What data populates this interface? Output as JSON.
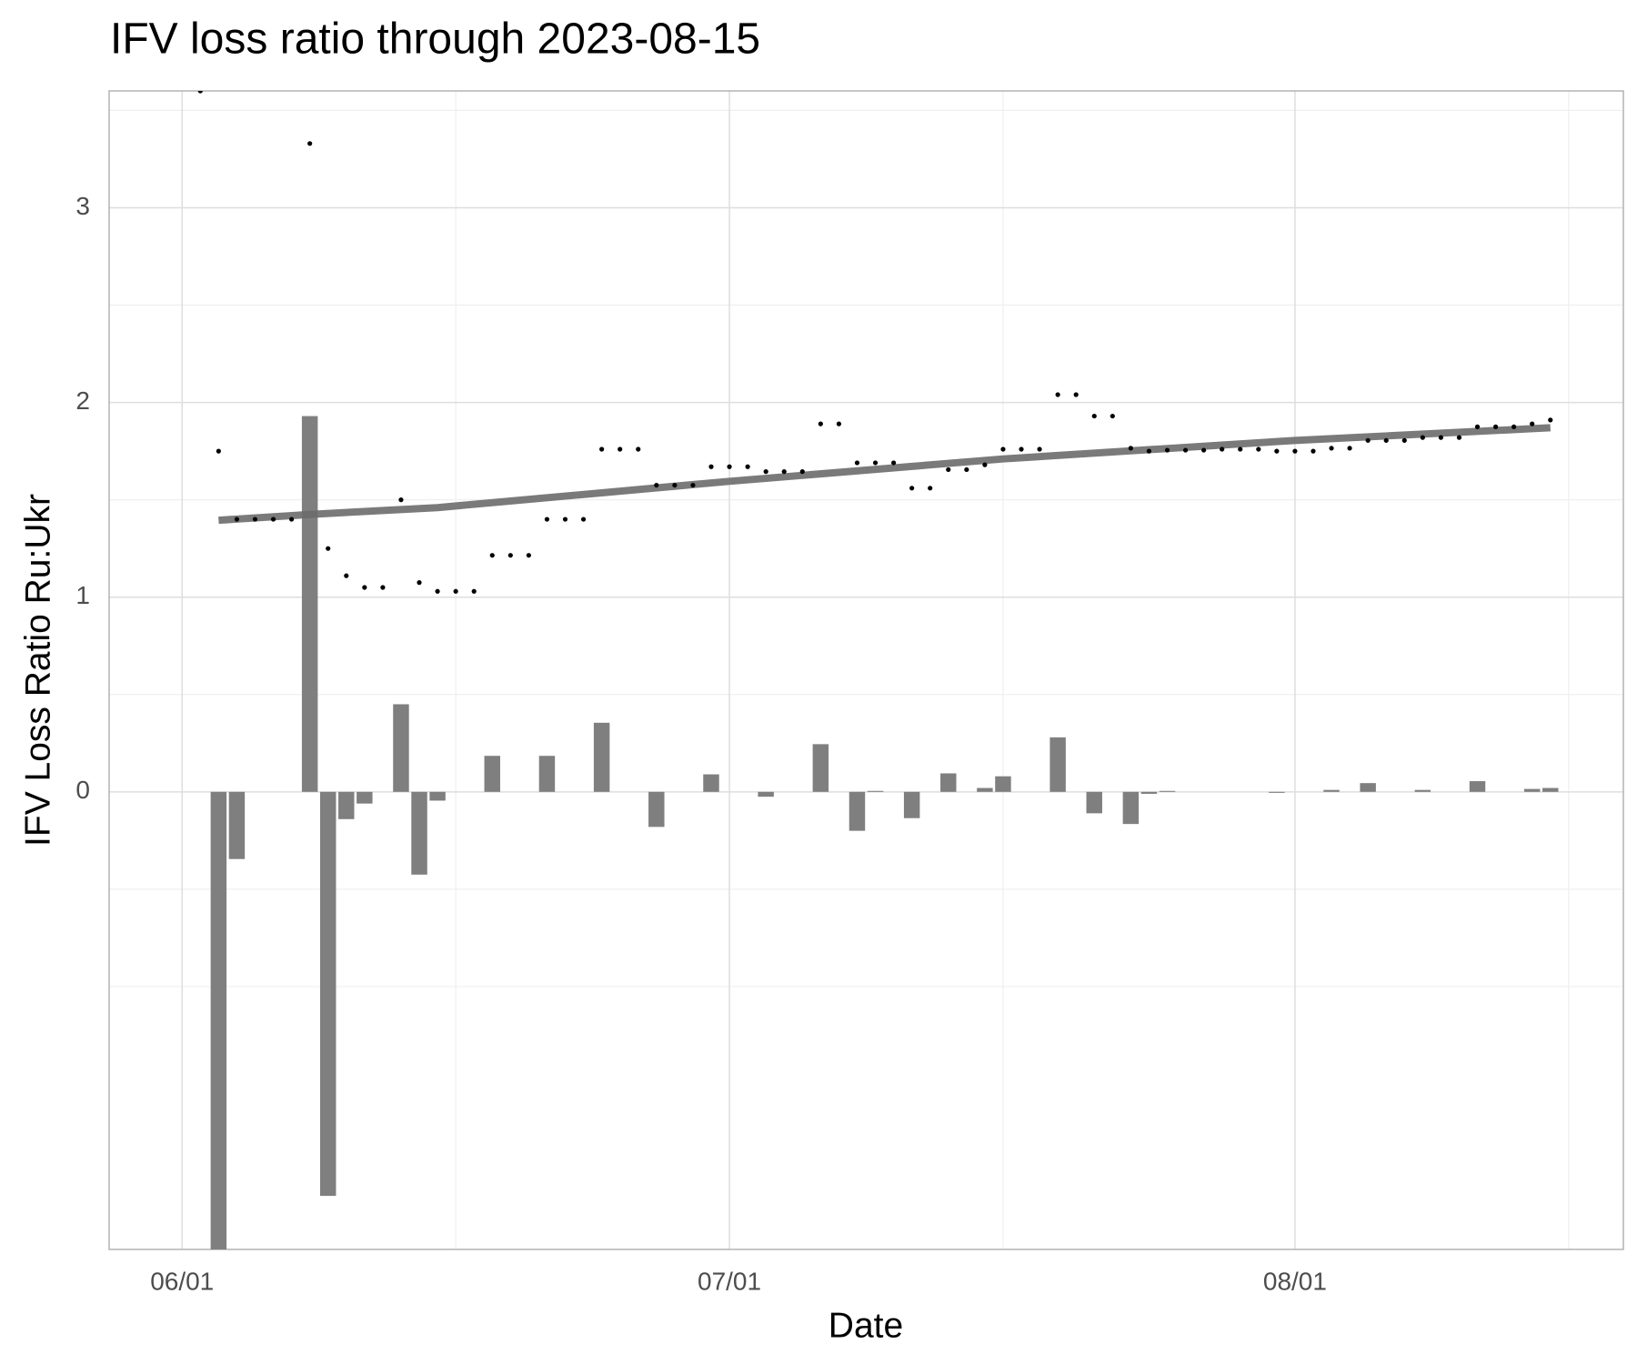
{
  "chart_data": {
    "type": "combo",
    "title": "IFV loss ratio through 2023-08-15",
    "x_label": "Date",
    "y_label": "IFV Loss Ratio Ru:Ukr",
    "xlim": [
      "05/28",
      "08/19"
    ],
    "xticks": [
      "06/01",
      "07/01",
      "08/01"
    ],
    "x_minor_grid": [
      "06/16",
      "07/16",
      "08/16"
    ],
    "ylim": [
      -2.35,
      3.6
    ],
    "yticks": [
      0,
      1,
      2,
      3
    ],
    "y_minor_grid": [
      -1,
      -0.5,
      0.5,
      1.5,
      2.5,
      3.5
    ],
    "grid": true,
    "series": [
      {
        "type": "point",
        "color": "#000000",
        "x": [
          "06/02",
          "06/03",
          "06/04",
          "06/05",
          "06/06",
          "06/07",
          "06/08",
          "06/09",
          "06/10",
          "06/11",
          "06/12",
          "06/13",
          "06/14",
          "06/15",
          "06/16",
          "06/17",
          "06/18",
          "06/19",
          "06/20",
          "06/21",
          "06/22",
          "06/23",
          "06/24",
          "06/25",
          "06/26",
          "06/27",
          "06/28",
          "06/29",
          "06/30",
          "07/01",
          "07/02",
          "07/03",
          "07/04",
          "07/05",
          "07/06",
          "07/07",
          "07/08",
          "07/09",
          "07/10",
          "07/11",
          "07/12",
          "07/13",
          "07/14",
          "07/15",
          "07/16",
          "07/17",
          "07/18",
          "07/19",
          "07/20",
          "07/21",
          "07/22",
          "07/23",
          "07/24",
          "07/25",
          "07/26",
          "07/27",
          "07/28",
          "07/29",
          "07/30",
          "07/31",
          "08/01",
          "08/02",
          "08/03",
          "08/04",
          "08/05",
          "08/06",
          "08/07",
          "08/08",
          "08/09",
          "08/10",
          "08/11",
          "08/12",
          "08/13",
          "08/14",
          "08/15"
        ],
        "values": [
          3.6,
          1.75,
          1.4,
          1.4,
          1.4,
          1.4,
          3.33,
          1.25,
          1.11,
          1.05,
          1.05,
          1.5,
          1.075,
          1.03,
          1.03,
          1.03,
          1.215,
          1.215,
          1.215,
          1.4,
          1.4,
          1.4,
          1.76,
          1.76,
          1.76,
          1.575,
          1.575,
          1.575,
          1.67,
          1.67,
          1.67,
          1.645,
          1.645,
          1.645,
          1.89,
          1.89,
          1.69,
          1.69,
          1.69,
          1.56,
          1.56,
          1.655,
          1.655,
          1.68,
          1.76,
          1.76,
          1.76,
          2.04,
          2.04,
          1.93,
          1.93,
          1.765,
          1.75,
          1.755,
          1.755,
          1.755,
          1.76,
          1.76,
          1.76,
          1.75,
          1.75,
          1.75,
          1.765,
          1.765,
          1.805,
          1.805,
          1.805,
          1.82,
          1.82,
          1.82,
          1.875,
          1.875,
          1.875,
          1.89,
          1.91
        ]
      },
      {
        "type": "bar",
        "color": "#7f7f7f",
        "x": [
          "06/02",
          "06/03",
          "06/04",
          "06/05",
          "06/06",
          "06/07",
          "06/08",
          "06/09",
          "06/10",
          "06/11",
          "06/12",
          "06/13",
          "06/14",
          "06/15",
          "06/16",
          "06/17",
          "06/18",
          "06/19",
          "06/20",
          "06/21",
          "06/22",
          "06/23",
          "06/24",
          "06/25",
          "06/26",
          "06/27",
          "06/28",
          "06/29",
          "06/30",
          "07/01",
          "07/02",
          "07/03",
          "07/04",
          "07/05",
          "07/06",
          "07/07",
          "07/08",
          "07/09",
          "07/10",
          "07/11",
          "07/12",
          "07/13",
          "07/14",
          "07/15",
          "07/16",
          "07/17",
          "07/18",
          "07/19",
          "07/20",
          "07/21",
          "07/22",
          "07/23",
          "07/24",
          "07/25",
          "07/26",
          "07/27",
          "07/28",
          "07/29",
          "07/30",
          "07/31",
          "08/01",
          "08/02",
          "08/03",
          "08/04",
          "08/05",
          "08/06",
          "08/07",
          "08/08",
          "08/09",
          "08/10",
          "08/11",
          "08/12",
          "08/13",
          "08/14",
          "08/15"
        ],
        "values": [
          null,
          -2.4,
          -0.345,
          0,
          0,
          0,
          1.93,
          -2.075,
          -0.14,
          -0.06,
          0,
          0.45,
          -0.425,
          -0.045,
          0,
          0,
          0.185,
          0,
          0,
          0.185,
          0,
          0,
          0.355,
          0,
          0,
          -0.18,
          0,
          0,
          0.09,
          0,
          0,
          -0.025,
          0,
          0,
          0.245,
          0,
          -0.2,
          0.005,
          0,
          -0.135,
          0,
          0.095,
          0,
          0.02,
          0.08,
          0,
          0,
          0.28,
          0,
          -0.11,
          0,
          -0.165,
          -0.01,
          0.005,
          0,
          0,
          0,
          0,
          0,
          -0.005,
          0,
          0,
          0.01,
          0,
          0.045,
          0,
          0,
          0.01,
          0,
          0,
          0.055,
          0,
          0,
          0.015,
          0.02
        ]
      },
      {
        "type": "line",
        "color": "#6b6b6b",
        "x": [
          "06/03",
          "06/08",
          "06/15",
          "07/01",
          "07/16",
          "08/01",
          "08/15"
        ],
        "values": [
          1.395,
          1.425,
          1.46,
          1.595,
          1.71,
          1.805,
          1.87
        ]
      }
    ]
  }
}
